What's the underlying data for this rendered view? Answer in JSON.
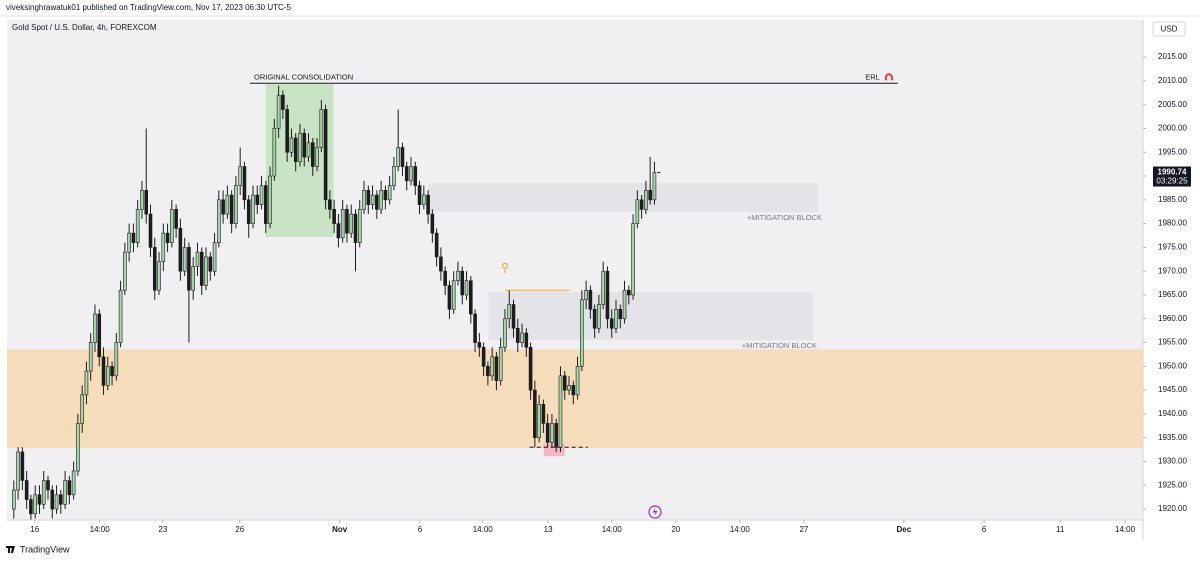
{
  "header": "viveksinghrawatuk01 published on TradingView.com, Nov 17, 2023 06:30 UTC-5",
  "footer": "TradingView",
  "chart_data": {
    "type": "candlestick",
    "title": "Gold Spot / U.S. Dollar, 4h, FOREXCOM",
    "currency": "USD",
    "countdown": "03:29:25",
    "up_color": "#a5d6a7",
    "down_color": "#1c1c1c",
    "wick_color": "#1c1c1c",
    "xlim": [
      -1.6,
      264.4
    ],
    "ylim": [
      1917.7,
      2022.8
    ],
    "xticks": [
      {
        "value": 4.9,
        "label": "16"
      },
      {
        "value": 20.1,
        "label": "14:00"
      },
      {
        "value": 34.9,
        "label": "23"
      },
      {
        "value": 52.9,
        "label": "26"
      },
      {
        "value": 76.3,
        "label": "Nov"
      },
      {
        "value": 95.1,
        "label": "6"
      },
      {
        "value": 109.8,
        "label": "14:00"
      },
      {
        "value": 125.1,
        "label": "13"
      },
      {
        "value": 140,
        "label": "14:00"
      },
      {
        "value": 155,
        "label": "20"
      },
      {
        "value": 170,
        "label": "14:00"
      },
      {
        "value": 185,
        "label": "27"
      },
      {
        "value": 208.4,
        "label": "Dec"
      },
      {
        "value": 227.2,
        "label": "6"
      },
      {
        "value": 245,
        "label": "11"
      },
      {
        "value": 260.2,
        "label": "14:00"
      }
    ],
    "yticks": [
      {
        "value": 1920,
        "label": "1920.00"
      },
      {
        "value": 1925,
        "label": "1925.00"
      },
      {
        "value": 1930,
        "label": "1930.00"
      },
      {
        "value": 1935,
        "label": "1935.00"
      },
      {
        "value": 1940,
        "label": "1940.00"
      },
      {
        "value": 1945,
        "label": "1945.00"
      },
      {
        "value": 1950,
        "label": "1950.00"
      },
      {
        "value": 1955,
        "label": "1955.00"
      },
      {
        "value": 1960,
        "label": "1960.00"
      },
      {
        "value": 1965,
        "label": "1965.00"
      },
      {
        "value": 1970,
        "label": "1970.00"
      },
      {
        "value": 1975,
        "label": "1975.00"
      },
      {
        "value": 1980,
        "label": "1980.00"
      },
      {
        "value": 1985,
        "label": "1985.00"
      },
      {
        "value": 1990,
        "label": "1990.00"
      },
      {
        "value": 1995,
        "label": "1995.00"
      },
      {
        "value": 2000,
        "label": "2000.00"
      },
      {
        "value": 2005,
        "label": "2005.00"
      },
      {
        "value": 2010,
        "label": "2010.00"
      },
      {
        "value": 2015,
        "label": "2015.00"
      }
    ],
    "zones": [
      {
        "y": [
          1932.8,
          1953.6
        ],
        "x": [
          -1.6,
          264.4
        ],
        "color": "#f5dcbb"
      },
      {
        "y": [
          1977.2,
          2009.3
        ],
        "x": [
          59,
          74.9
        ],
        "color": "#c9e4c5"
      },
      {
        "y": [
          1982.4,
          1988.5
        ],
        "x": [
          97,
          188.3
        ],
        "color": "#e3e3e8",
        "label": "+MITIGATION BLOCK"
      },
      {
        "y": [
          1955.5,
          1965.6
        ],
        "x": [
          111.2,
          187.1
        ],
        "color": "#e3e3e8",
        "label": "+MITIGATION BLOCK"
      },
      {
        "y": [
          1931.1,
          1933.7
        ],
        "x": [
          124.1,
          129
        ],
        "color": "#f4b6c0"
      }
    ],
    "lines": [
      {
        "y": 2009.5,
        "x": [
          55.3,
          207
        ],
        "color": "#131722",
        "label": "ORIGINAL CONSOLIDATION",
        "end_label": "ERL"
      },
      {
        "y": 1933,
        "x": [
          120.8,
          134.4
        ],
        "color": "#131722",
        "dash": true
      },
      {
        "y": 1966,
        "x": [
          115,
          130.2
        ],
        "color": "#f7a54a"
      }
    ],
    "candles": [
      [
        1920,
        1926,
        1918,
        1924
      ],
      [
        1924,
        1933,
        1922,
        1932
      ],
      [
        1932,
        1933,
        1924,
        1926
      ],
      [
        1926,
        1928,
        1920,
        1922
      ],
      [
        1922,
        1923,
        1917.8,
        1919
      ],
      [
        1919,
        1925,
        1918,
        1923
      ],
      [
        1923,
        1925,
        1919,
        1921
      ],
      [
        1921,
        1928,
        1920,
        1926
      ],
      [
        1926,
        1927,
        1922,
        1924
      ],
      [
        1924,
        1925,
        1918,
        1920
      ],
      [
        1920,
        1925,
        1919,
        1923
      ],
      [
        1923,
        1924,
        1919,
        1921
      ],
      [
        1921,
        1928,
        1920,
        1926
      ],
      [
        1926,
        1927,
        1921,
        1923
      ],
      [
        1923,
        1930,
        1922,
        1928
      ],
      [
        1928,
        1940,
        1927,
        1938
      ],
      [
        1938,
        1946,
        1936,
        1944
      ],
      [
        1944,
        1951,
        1942,
        1949
      ],
      [
        1949,
        1957,
        1947,
        1955
      ],
      [
        1955,
        1963,
        1953,
        1961
      ],
      [
        1961,
        1962,
        1950,
        1952
      ],
      [
        1952,
        1954,
        1944,
        1946
      ],
      [
        1946,
        1952,
        1945,
        1950
      ],
      [
        1950,
        1951,
        1946,
        1948
      ],
      [
        1948,
        1957,
        1947,
        1955
      ],
      [
        1955,
        1968,
        1954,
        1966
      ],
      [
        1966,
        1976,
        1965,
        1974
      ],
      [
        1974,
        1980,
        1972,
        1978
      ],
      [
        1978,
        1980,
        1974,
        1976
      ],
      [
        1976,
        1985,
        1975,
        1983
      ],
      [
        1983,
        1989,
        1981,
        1987
      ],
      [
        1987,
        2000,
        1980,
        1982
      ],
      [
        1982,
        1984,
        1973,
        1975
      ],
      [
        1975,
        1977,
        1964,
        1966
      ],
      [
        1966,
        1974,
        1965,
        1972
      ],
      [
        1972,
        1980,
        1970,
        1978
      ],
      [
        1978,
        1980,
        1974,
        1976
      ],
      [
        1976,
        1985,
        1975,
        1983
      ],
      [
        1983,
        1984,
        1977,
        1979
      ],
      [
        1979,
        1981,
        1968,
        1970
      ],
      [
        1970,
        1977,
        1969,
        1975
      ],
      [
        1975,
        1976,
        1955,
        1966
      ],
      [
        1966,
        1973,
        1964,
        1971
      ],
      [
        1971,
        1976,
        1969,
        1974
      ],
      [
        1974,
        1975,
        1965,
        1967
      ],
      [
        1967,
        1975,
        1966,
        1973
      ],
      [
        1973,
        1974,
        1968,
        1970
      ],
      [
        1970,
        1978,
        1969,
        1976
      ],
      [
        1976,
        1987,
        1975,
        1985
      ],
      [
        1985,
        1987,
        1980,
        1982
      ],
      [
        1982,
        1988,
        1981,
        1986
      ],
      [
        1986,
        1987,
        1978,
        1980
      ],
      [
        1980,
        1990,
        1979,
        1988
      ],
      [
        1988,
        1996,
        1986,
        1992
      ],
      [
        1992,
        1993,
        1983,
        1985
      ],
      [
        1985,
        1986,
        1977,
        1980
      ],
      [
        1980,
        1988,
        1979,
        1986
      ],
      [
        1986,
        1988,
        1982,
        1984
      ],
      [
        1984,
        1990,
        1983,
        1988
      ],
      [
        1988,
        1989,
        1978,
        1980
      ],
      [
        1980,
        1992,
        1979,
        1990
      ],
      [
        1990,
        2002,
        1989,
        2000
      ],
      [
        2000,
        2009,
        1998,
        2007
      ],
      [
        2007,
        2008,
        2002,
        2004
      ],
      [
        2004,
        2005,
        1993,
        1995
      ],
      [
        1995,
        2000,
        1994,
        1998
      ],
      [
        1998,
        1999,
        1991,
        1993
      ],
      [
        1993,
        2001,
        1992,
        1999
      ],
      [
        1999,
        2000,
        1992,
        1994
      ],
      [
        1994,
        1999,
        1993,
        1997
      ],
      [
        1997,
        1998,
        1990,
        1992
      ],
      [
        1992,
        1998,
        1991,
        1996
      ],
      [
        1996,
        2006,
        1995,
        2004
      ],
      [
        2004,
        2005,
        1983,
        1985
      ],
      [
        1985,
        1987,
        1981,
        1983
      ],
      [
        1983,
        1985,
        1978,
        1980
      ],
      [
        1980,
        1982,
        1975,
        1977
      ],
      [
        1977,
        1985,
        1976,
        1983
      ],
      [
        1983,
        1984,
        1976,
        1978
      ],
      [
        1978,
        1984,
        1977,
        1982
      ],
      [
        1982,
        1983,
        1970,
        1976
      ],
      [
        1976,
        1985,
        1975,
        1983
      ],
      [
        1983,
        1989,
        1982,
        1987
      ],
      [
        1987,
        1988,
        1982,
        1984
      ],
      [
        1984,
        1988,
        1983,
        1986
      ],
      [
        1986,
        1987,
        1981,
        1983
      ],
      [
        1983,
        1989,
        1982,
        1987
      ],
      [
        1987,
        1988,
        1983,
        1985
      ],
      [
        1985,
        1990,
        1984,
        1988
      ],
      [
        1988,
        1994,
        1987,
        1992
      ],
      [
        1992,
        2004,
        1991,
        1996
      ],
      [
        1996,
        1997,
        1990,
        1992
      ],
      [
        1992,
        1993,
        1987,
        1989
      ],
      [
        1989,
        1994,
        1988,
        1992
      ],
      [
        1992,
        1993,
        1986,
        1988
      ],
      [
        1988,
        1989,
        1982,
        1984
      ],
      [
        1984,
        1988,
        1983,
        1986
      ],
      [
        1986,
        1987,
        1980,
        1982
      ],
      [
        1982,
        1983,
        1976,
        1978
      ],
      [
        1978,
        1979,
        1971,
        1973
      ],
      [
        1973,
        1975,
        1968,
        1970
      ],
      [
        1970,
        1971,
        1965,
        1967
      ],
      [
        1967,
        1968,
        1960,
        1962
      ],
      [
        1962,
        1970,
        1961,
        1968
      ],
      [
        1968,
        1972,
        1967,
        1970
      ],
      [
        1970,
        1971,
        1963,
        1965
      ],
      [
        1965,
        1970,
        1964,
        1968
      ],
      [
        1968,
        1969,
        1959,
        1961
      ],
      [
        1961,
        1962,
        1953,
        1955
      ],
      [
        1955,
        1957,
        1952,
        1954
      ],
      [
        1954,
        1955,
        1948,
        1950
      ],
      [
        1950,
        1951,
        1946,
        1948
      ],
      [
        1948,
        1954,
        1947,
        1952
      ],
      [
        1952,
        1953,
        1945,
        1947
      ],
      [
        1947,
        1956,
        1946,
        1954
      ],
      [
        1954,
        1962,
        1953,
        1960
      ],
      [
        1960,
        1966,
        1958,
        1963
      ],
      [
        1963,
        1964,
        1956,
        1958
      ],
      [
        1958,
        1960,
        1953,
        1955
      ],
      [
        1955,
        1959,
        1954,
        1957
      ],
      [
        1957,
        1958,
        1952,
        1954
      ],
      [
        1954,
        1955,
        1943,
        1945
      ],
      [
        1945,
        1947,
        1933,
        1935
      ],
      [
        1935,
        1944,
        1934,
        1942
      ],
      [
        1942,
        1943,
        1936,
        1938
      ],
      [
        1938,
        1940,
        1933,
        1934
      ],
      [
        1934,
        1940,
        1933,
        1938
      ],
      [
        1938,
        1939,
        1932,
        1933
      ],
      [
        1933,
        1950,
        1932,
        1948
      ],
      [
        1948,
        1949,
        1943,
        1945
      ],
      [
        1945,
        1948,
        1944,
        1946
      ],
      [
        1946,
        1947,
        1942,
        1944
      ],
      [
        1944,
        1952,
        1943,
        1950
      ],
      [
        1950,
        1966,
        1949,
        1964
      ],
      [
        1964,
        1968,
        1962,
        1966
      ],
      [
        1966,
        1967,
        1960,
        1962
      ],
      [
        1962,
        1963,
        1956,
        1958
      ],
      [
        1958,
        1965,
        1957,
        1963
      ],
      [
        1963,
        1972,
        1962,
        1970
      ],
      [
        1970,
        1971,
        1958,
        1960
      ],
      [
        1960,
        1962,
        1956,
        1958
      ],
      [
        1958,
        1964,
        1957,
        1962
      ],
      [
        1962,
        1963,
        1958,
        1960
      ],
      [
        1960,
        1968,
        1959,
        1966
      ],
      [
        1966,
        1967,
        1963,
        1965
      ],
      [
        1965,
        1982,
        1964,
        1980
      ],
      [
        1980,
        1987,
        1979,
        1985
      ],
      [
        1985,
        1986,
        1981,
        1983
      ],
      [
        1983,
        1989,
        1982,
        1987
      ],
      [
        1987,
        1994,
        1984,
        1985
      ],
      [
        1985,
        1993,
        1984,
        1990.74
      ]
    ]
  }
}
